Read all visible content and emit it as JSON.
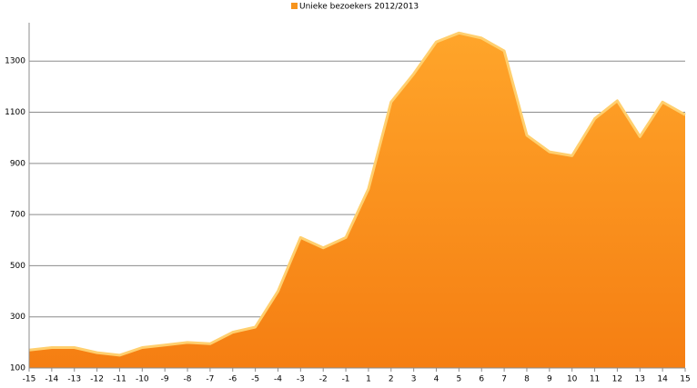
{
  "chart_data": {
    "type": "area",
    "categories": [
      "-15",
      "-14",
      "-13",
      "-12",
      "-11",
      "-10",
      "-9",
      "-8",
      "-7",
      "-6",
      "-5",
      "-4",
      "-3",
      "-2",
      "-1",
      "1",
      "2",
      "3",
      "4",
      "5",
      "6",
      "7",
      "8",
      "9",
      "10",
      "11",
      "12",
      "13",
      "14",
      "15"
    ],
    "series": [
      {
        "name": "Unieke bezoekers 2012/2013",
        "color": "#f7941d",
        "values": [
          170,
          180,
          180,
          160,
          150,
          180,
          190,
          200,
          195,
          240,
          260,
          400,
          610,
          570,
          610,
          800,
          1140,
          1250,
          1375,
          1410,
          1390,
          1340,
          1010,
          945,
          930,
          1075,
          1145,
          1005,
          1140,
          1090
        ]
      }
    ],
    "ylim": [
      100,
      1450
    ],
    "yticks": [
      100,
      300,
      500,
      700,
      900,
      1100,
      1300
    ],
    "grid": true,
    "legend": "top"
  }
}
